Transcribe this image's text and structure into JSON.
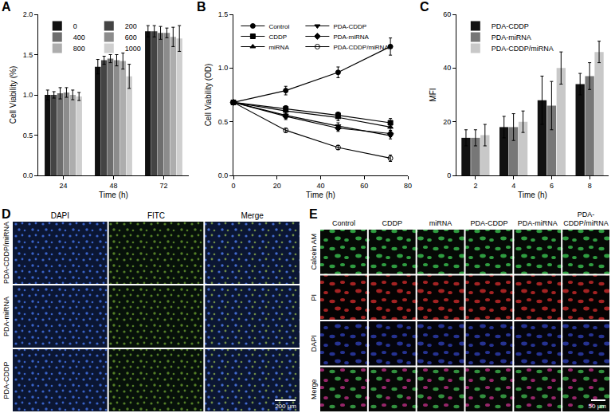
{
  "chart_data": [
    {
      "panel": "A",
      "type": "bar",
      "x_label": "Time (h)",
      "y_label": "Cell Viability (%)",
      "categories": [
        "24",
        "48",
        "72"
      ],
      "series": [
        {
          "name": "0",
          "color": "#111111",
          "values": [
            1.0,
            1.35,
            1.79
          ],
          "errors": [
            0.06,
            0.09,
            0.07
          ]
        },
        {
          "name": "200",
          "color": "#444444",
          "values": [
            1.0,
            1.43,
            1.79
          ],
          "errors": [
            0.04,
            0.05,
            0.07
          ]
        },
        {
          "name": "400",
          "color": "#6e6e6e",
          "values": [
            1.02,
            1.45,
            1.77
          ],
          "errors": [
            0.07,
            0.05,
            0.08
          ]
        },
        {
          "name": "600",
          "color": "#8c8c8c",
          "values": [
            1.03,
            1.43,
            1.77
          ],
          "errors": [
            0.06,
            0.07,
            0.06
          ]
        },
        {
          "name": "800",
          "color": "#adadad",
          "values": [
            1.0,
            1.42,
            1.72
          ],
          "errors": [
            0.06,
            0.1,
            0.12
          ]
        },
        {
          "name": "1000",
          "color": "#cfcfcf",
          "values": [
            0.98,
            1.23,
            1.7
          ],
          "errors": [
            0.05,
            0.15,
            0.16
          ]
        }
      ],
      "ylim": [
        0,
        2
      ],
      "yticks": [
        {
          "value": 0,
          "label": "0.0"
        },
        0.5,
        {
          "value": 1,
          "label": "1.0"
        },
        1.5,
        {
          "value": 2,
          "label": "2.0"
        }
      ],
      "grid": false,
      "legend": "top-left"
    },
    {
      "panel": "B",
      "type": "line",
      "x_label": "Time (h)",
      "y_label": "Cell Viability (OD)",
      "x": [
        0,
        24,
        48,
        72
      ],
      "series": [
        {
          "name": "Control",
          "color": "#000000",
          "marker": "circle",
          "values": [
            0.68,
            0.79,
            0.96,
            1.2
          ],
          "errors": [
            0.02,
            0.04,
            0.05,
            0.08
          ]
        },
        {
          "name": "CDDP",
          "color": "#000000",
          "marker": "square",
          "values": [
            0.68,
            0.62,
            0.56,
            0.49
          ],
          "errors": [
            0.02,
            0.03,
            0.03,
            0.04
          ]
        },
        {
          "name": "miRNA",
          "color": "#000000",
          "marker": "triangle-up",
          "values": [
            0.68,
            0.6,
            0.54,
            0.45
          ],
          "errors": [
            0.02,
            0.03,
            0.03,
            0.03
          ]
        },
        {
          "name": "PDA-CDDP",
          "color": "#000000",
          "marker": "triangle-down",
          "values": [
            0.68,
            0.56,
            0.46,
            0.37
          ],
          "errors": [
            0.02,
            0.03,
            0.03,
            0.03
          ]
        },
        {
          "name": "PDA-miRNA",
          "color": "#000000",
          "marker": "diamond",
          "values": [
            0.68,
            0.55,
            0.44,
            0.39
          ],
          "errors": [
            0.02,
            0.03,
            0.03,
            0.03
          ]
        },
        {
          "name": "PDA-CDDP/miRNA",
          "color": "#000000",
          "marker": "circle-open",
          "values": [
            0.68,
            0.42,
            0.26,
            0.16
          ],
          "errors": [
            0.02,
            0.02,
            0.02,
            0.03
          ]
        }
      ],
      "xlim": [
        0,
        80
      ],
      "xticks": [
        0,
        20,
        40,
        60,
        80
      ],
      "ylim": [
        0,
        1.5
      ],
      "yticks": [
        {
          "value": 0,
          "label": "0.0"
        },
        0.5,
        {
          "value": 1,
          "label": "1.0"
        },
        1.5
      ],
      "grid": false,
      "legend": "top-left"
    },
    {
      "panel": "C",
      "type": "bar",
      "x_label": "Time (h)",
      "y_label": "MFI",
      "categories": [
        "2",
        "4",
        "6",
        "8"
      ],
      "series": [
        {
          "name": "PDA-CDDP",
          "color": "#111111",
          "values": [
            14,
            18,
            28,
            34
          ],
          "errors": [
            3,
            4,
            9,
            4
          ]
        },
        {
          "name": "PDA-miRNA",
          "color": "#777777",
          "values": [
            14,
            18,
            26,
            37
          ],
          "errors": [
            3,
            5,
            9,
            5
          ]
        },
        {
          "name": "PDA-CDDP/miRNA",
          "color": "#c8c8c8",
          "values": [
            15,
            20,
            40,
            46
          ],
          "errors": [
            4,
            4,
            6,
            4
          ]
        }
      ],
      "ylim": [
        0,
        60
      ],
      "yticks": [
        0,
        20,
        40,
        60
      ],
      "grid": false,
      "legend": "top-left"
    }
  ],
  "image_panels": [
    {
      "panel": "D",
      "columns": [
        "DAPI",
        "FITC",
        "Merge"
      ],
      "rows": [
        "PDA-CDDP/miRNA",
        "PDA-miRNA",
        "PDA-CDDP"
      ],
      "scale_bar": "200 μm"
    },
    {
      "panel": "E",
      "columns": [
        "Control",
        "CDDP",
        "miRNA",
        "PDA-CDDP",
        "PDA-miRNA",
        "PDA-CDDP/miRNA"
      ],
      "rows": [
        "Calcein AM",
        "PI",
        "DAPI",
        "Merge"
      ],
      "scale_bar": "50 μm"
    }
  ]
}
